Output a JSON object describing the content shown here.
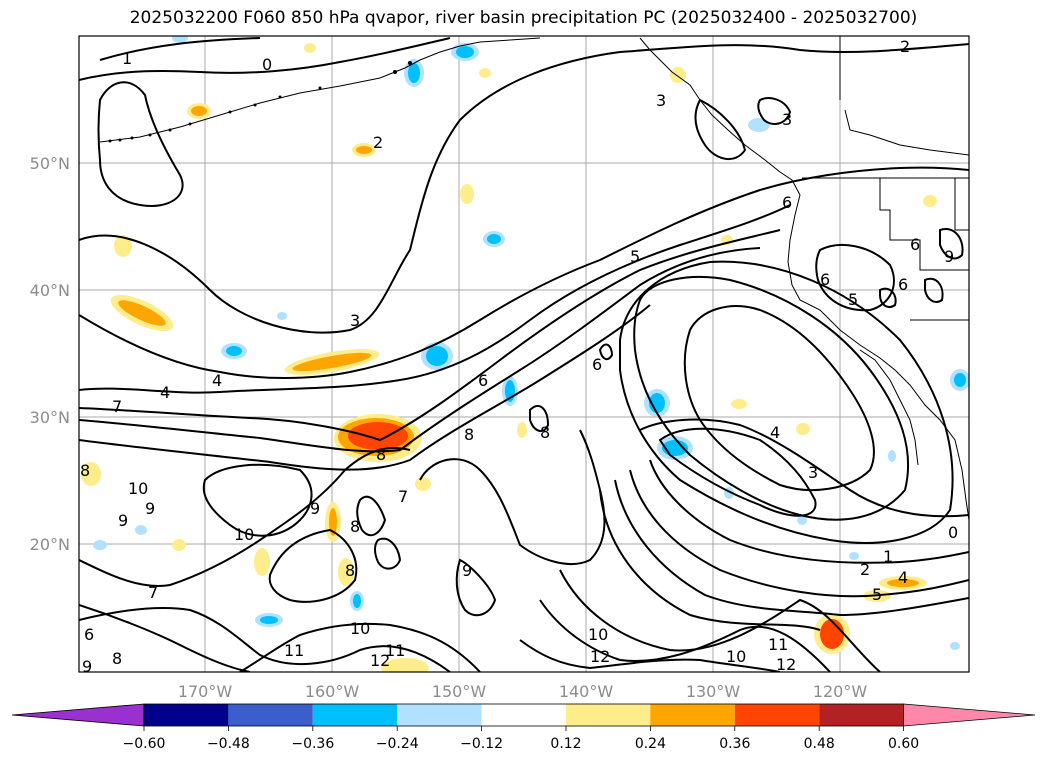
{
  "title": "2025032200 F060 850 hPa qvapor, river basin precipitation PC (2025032400 - 2025032700)",
  "lat_labels": [
    "50°N",
    "40°N",
    "30°N",
    "20°N"
  ],
  "lon_labels": [
    "170°W",
    "160°W",
    "150°W",
    "140°W",
    "130°W",
    "120°W"
  ],
  "colorbar": {
    "ticks": [
      "−0.60",
      "−0.48",
      "−0.36",
      "−0.24",
      "−0.12",
      "0.12",
      "0.24",
      "0.36",
      "0.48",
      "0.60"
    ],
    "colors": [
      "#9b30d0",
      "#00008b",
      "#3a5fcd",
      "#00bfff",
      "#b0e2ff",
      "#ffffff",
      "#ffec8b",
      "#ffa500",
      "#ff4500",
      "#b22222",
      "#ff88aa"
    ]
  },
  "contour_labels": [
    "1",
    "0",
    "2",
    "3",
    "3",
    "2",
    "3",
    "4",
    "4",
    "5",
    "6",
    "6",
    "6",
    "6",
    "6",
    "5",
    "6",
    "7",
    "8",
    "8",
    "8",
    "9",
    "10",
    "10",
    "9",
    "9",
    "8",
    "7",
    "8",
    "9",
    "10",
    "11",
    "12",
    "11",
    "12",
    "10",
    "10",
    "11",
    "12",
    "3",
    "4",
    "1",
    "2",
    "4",
    "5",
    "8",
    "9",
    "6",
    "0",
    "9",
    "8",
    "7"
  ]
}
